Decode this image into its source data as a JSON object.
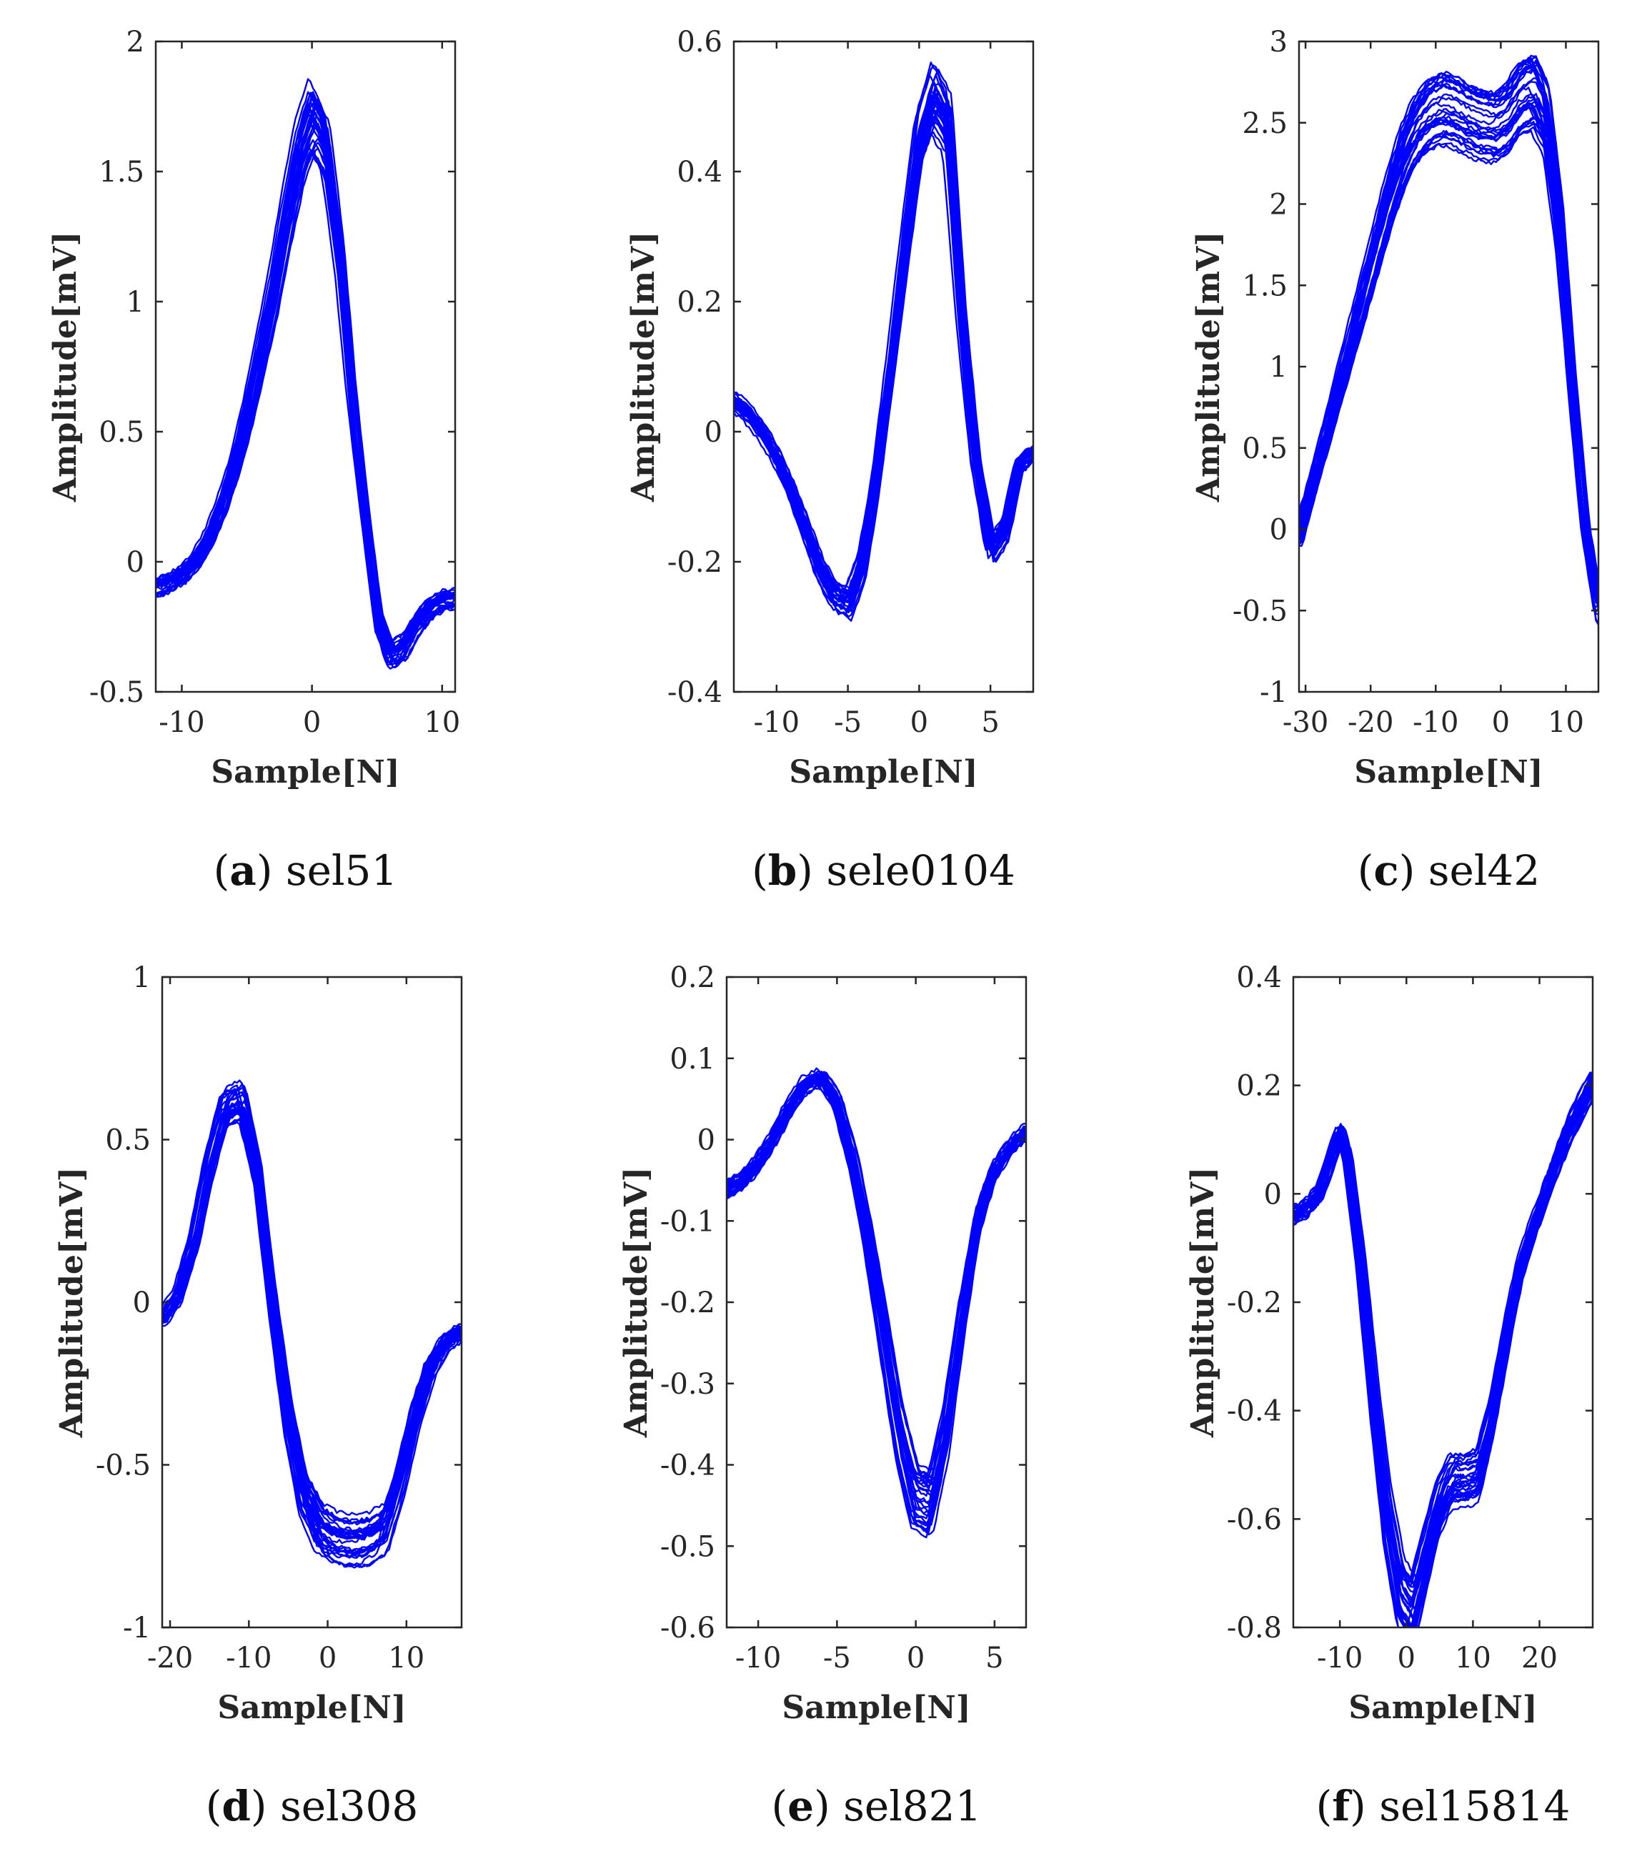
{
  "figure": {
    "line_color": "#0000ff",
    "axis_color": "#262626"
  },
  "chart_data": [
    {
      "type": "line",
      "letter": "a",
      "name": "sel51",
      "xlabel": "Sample[N]",
      "ylabel": "Amplitude[mV]",
      "xlim": [
        -12,
        11
      ],
      "ylim": [
        -0.5,
        2
      ],
      "xticks": [
        -10,
        0,
        10
      ],
      "xtick_labels": [
        "-10",
        "0",
        "10"
      ],
      "yticks": [
        -0.5,
        0,
        0.5,
        1,
        1.5,
        2
      ],
      "ytick_labels": [
        "-0.5",
        "0",
        "0.5",
        "1",
        "1.5",
        "2"
      ],
      "series_count": 30,
      "template": {
        "x": [
          -12,
          -11,
          -10,
          -9,
          -8,
          -7,
          -6,
          -5,
          -4,
          -3,
          -2,
          -1,
          0,
          1,
          2,
          3,
          4,
          5,
          6,
          7,
          8,
          9,
          10,
          11
        ],
        "y": [
          -0.1,
          -0.08,
          -0.05,
          0.0,
          0.08,
          0.2,
          0.35,
          0.55,
          0.78,
          1.02,
          1.3,
          1.55,
          1.7,
          1.6,
          1.2,
          0.65,
          0.2,
          -0.22,
          -0.36,
          -0.33,
          -0.24,
          -0.18,
          -0.15,
          -0.14
        ]
      }
    },
    {
      "type": "line",
      "letter": "b",
      "name": "sele0104",
      "xlabel": "Sample[N]",
      "ylabel": "Amplitude[mV]",
      "xlim": [
        -13,
        8
      ],
      "ylim": [
        -0.4,
        0.6
      ],
      "xticks": [
        -10,
        -5,
        0,
        5
      ],
      "xtick_labels": [
        "-10",
        "-5",
        "0",
        "5"
      ],
      "yticks": [
        -0.4,
        -0.2,
        0,
        0.2,
        0.4,
        0.6
      ],
      "ytick_labels": [
        "-0.4",
        "-0.2",
        "0",
        "0.2",
        "0.4",
        "0.6"
      ],
      "series_count": 30,
      "template": {
        "x": [
          -13,
          -12,
          -11,
          -10,
          -9,
          -8,
          -7,
          -6,
          -5,
          -4,
          -3,
          -2,
          -1,
          0,
          1,
          2,
          3,
          4,
          5,
          6,
          7,
          8
        ],
        "y": [
          0.05,
          0.03,
          0.0,
          -0.04,
          -0.09,
          -0.15,
          -0.21,
          -0.25,
          -0.26,
          -0.2,
          -0.07,
          0.1,
          0.28,
          0.45,
          0.52,
          0.48,
          0.18,
          -0.05,
          -0.18,
          -0.15,
          -0.05,
          -0.03
        ]
      }
    },
    {
      "type": "line",
      "letter": "c",
      "name": "sel42",
      "xlabel": "Sample[N]",
      "ylabel": "Amplitude[mV]",
      "xlim": [
        -31,
        15
      ],
      "ylim": [
        -1,
        3
      ],
      "xticks": [
        -30,
        -20,
        -10,
        0,
        10
      ],
      "xtick_labels": [
        "-30",
        "-20",
        "-10",
        "0",
        "10"
      ],
      "yticks": [
        -1,
        -0.5,
        0,
        0.5,
        1,
        1.5,
        2,
        2.5,
        3
      ],
      "ytick_labels": [
        "-1",
        "-0.5",
        "0",
        "0.5",
        "1",
        "1.5",
        "2",
        "2.5",
        "3"
      ],
      "series_count": 30,
      "template": {
        "x": [
          -31,
          -29,
          -27,
          -25,
          -23,
          -21,
          -19,
          -17,
          -15,
          -13,
          -11,
          -9,
          -7,
          -5,
          -3,
          -1,
          1,
          3,
          5,
          7,
          9,
          11,
          13,
          15
        ],
        "y": [
          -0.05,
          0.25,
          0.55,
          0.85,
          1.15,
          1.45,
          1.75,
          2.05,
          2.3,
          2.48,
          2.58,
          2.62,
          2.6,
          2.55,
          2.52,
          2.5,
          2.55,
          2.68,
          2.72,
          2.55,
          1.9,
          0.9,
          0.0,
          -0.5
        ]
      }
    },
    {
      "type": "line",
      "letter": "d",
      "name": "sel308",
      "xlabel": "Sample[N]",
      "ylabel": "Amplitude[mV]",
      "xlim": [
        -21,
        17
      ],
      "ylim": [
        -1,
        1
      ],
      "xticks": [
        -20,
        -10,
        0,
        10
      ],
      "xtick_labels": [
        "-20",
        "-10",
        "0",
        "10"
      ],
      "yticks": [
        -1,
        -0.5,
        0,
        0.5,
        1
      ],
      "ytick_labels": [
        "-1",
        "-0.5",
        "0",
        "0.5",
        "1"
      ],
      "series_count": 30,
      "template": {
        "x": [
          -21,
          -19,
          -17,
          -15,
          -13,
          -11,
          -9,
          -7,
          -5,
          -3,
          -1,
          1,
          3,
          5,
          7,
          9,
          11,
          13,
          15,
          17
        ],
        "y": [
          -0.05,
          0.02,
          0.18,
          0.42,
          0.6,
          0.62,
          0.4,
          0.0,
          -0.35,
          -0.6,
          -0.7,
          -0.73,
          -0.74,
          -0.73,
          -0.7,
          -0.55,
          -0.35,
          -0.2,
          -0.12,
          -0.09
        ]
      }
    },
    {
      "type": "line",
      "letter": "e",
      "name": "sel821",
      "xlabel": "Sample[N]",
      "ylabel": "Amplitude[mV]",
      "xlim": [
        -12,
        7
      ],
      "ylim": [
        -0.6,
        0.2
      ],
      "xticks": [
        -10,
        -5,
        0,
        5
      ],
      "xtick_labels": [
        "-10",
        "-5",
        "0",
        "5"
      ],
      "yticks": [
        -0.6,
        -0.5,
        -0.4,
        -0.3,
        -0.2,
        -0.1,
        0,
        0.1,
        0.2
      ],
      "ytick_labels": [
        "-0.6",
        "-0.5",
        "-0.4",
        "-0.3",
        "-0.2",
        "-0.1",
        "0",
        "0.1",
        "0.2"
      ],
      "series_count": 30,
      "template": {
        "x": [
          -12,
          -11,
          -10,
          -9,
          -8,
          -7,
          -6,
          -5,
          -4,
          -3,
          -2,
          -1,
          0,
          1,
          2,
          3,
          4,
          5,
          6,
          7
        ],
        "y": [
          -0.06,
          -0.05,
          -0.03,
          0.0,
          0.04,
          0.07,
          0.08,
          0.05,
          -0.02,
          -0.12,
          -0.24,
          -0.36,
          -0.44,
          -0.45,
          -0.36,
          -0.22,
          -0.1,
          -0.04,
          -0.01,
          0.01
        ]
      }
    },
    {
      "type": "line",
      "letter": "f",
      "name": "sel15814",
      "xlabel": "Sample[N]",
      "ylabel": "Amplitude[mV]",
      "xlim": [
        -17,
        28
      ],
      "ylim": [
        -0.8,
        0.4
      ],
      "xticks": [
        -10,
        0,
        10,
        20
      ],
      "xtick_labels": [
        "-10",
        "0",
        "10",
        "20"
      ],
      "yticks": [
        -0.8,
        -0.6,
        -0.4,
        -0.2,
        0,
        0.2,
        0.4
      ],
      "ytick_labels": [
        "-0.8",
        "-0.6",
        "-0.4",
        "-0.2",
        "0",
        "0.2",
        "0.4"
      ],
      "series_count": 30,
      "template": {
        "x": [
          -17,
          -15,
          -13,
          -11,
          -10,
          -9,
          -7,
          -5,
          -3,
          -1,
          1,
          3,
          5,
          7,
          9,
          11,
          13,
          15,
          17,
          19,
          21,
          23,
          25,
          27,
          28
        ],
        "y": [
          -0.04,
          -0.03,
          0.0,
          0.08,
          0.11,
          0.08,
          -0.12,
          -0.38,
          -0.6,
          -0.74,
          -0.78,
          -0.68,
          -0.58,
          -0.53,
          -0.53,
          -0.52,
          -0.42,
          -0.28,
          -0.15,
          -0.07,
          0.0,
          0.07,
          0.13,
          0.18,
          0.2
        ]
      }
    }
  ]
}
